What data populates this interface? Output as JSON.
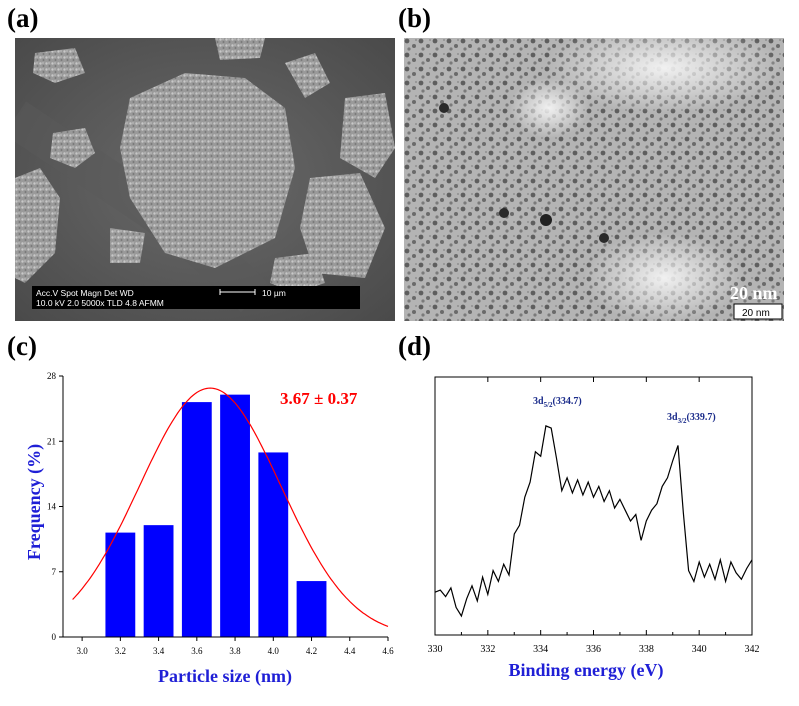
{
  "panel_labels": {
    "a": "(a)",
    "b": "(b)",
    "c": "(c)",
    "d": "(d)"
  },
  "sem": {
    "info_header": "Acc.V  Spot Magn    Det  WD",
    "info_values": "10.0 kV 2.0   5000x    TLD  4.8   AFMM",
    "scale_label": "10 µm"
  },
  "tem": {
    "scale_text_large": "20 nm",
    "scale_box_label": "20 nm"
  },
  "colors": {
    "bar": "#0000ff",
    "fit": "#ff0000",
    "axis_title_c": "#1f1fd6",
    "axis_title_d": "#1f1fd6",
    "peak_label": "#1a2b8a"
  },
  "chart_data": [
    {
      "type": "bar",
      "panel": "c",
      "categories": [
        3.2,
        3.4,
        3.6,
        3.8,
        4.0,
        4.2
      ],
      "values": [
        11.2,
        12.0,
        25.2,
        26.0,
        19.8,
        6.0
      ],
      "fit": {
        "type": "gaussian",
        "mean": 3.67,
        "sigma": 0.37,
        "peak": 26.7
      },
      "annotation": "3.67 ± 0.37",
      "xlabel": "Particle size (nm)",
      "ylabel": "Frequency (%)",
      "xlim": [
        2.9,
        4.6
      ],
      "ylim": [
        0,
        28
      ],
      "xticks": [
        "3.0",
        "3.2",
        "3.4",
        "3.6",
        "3.8",
        "4.0",
        "4.2",
        "4.4",
        "4.6"
      ],
      "yticks": [
        "0",
        "7",
        "14",
        "21",
        "28"
      ]
    },
    {
      "type": "line",
      "panel": "d",
      "x": [
        330.0,
        330.2,
        330.4,
        330.6,
        330.8,
        331.0,
        331.2,
        331.4,
        331.6,
        331.8,
        332.0,
        332.2,
        332.4,
        332.6,
        332.8,
        333.0,
        333.2,
        333.4,
        333.6,
        333.8,
        334.0,
        334.2,
        334.4,
        334.6,
        334.8,
        335.0,
        335.2,
        335.4,
        335.6,
        335.8,
        336.0,
        336.2,
        336.4,
        336.6,
        336.8,
        337.0,
        337.2,
        337.4,
        337.6,
        337.8,
        338.0,
        338.2,
        338.4,
        338.6,
        338.8,
        339.0,
        339.2,
        339.4,
        339.6,
        339.8,
        340.0,
        340.2,
        340.4,
        340.6,
        340.8,
        341.0,
        341.2,
        341.4,
        341.6,
        341.8,
        342.0
      ],
      "y": [
        0.11,
        0.12,
        0.09,
        0.13,
        0.04,
        0.0,
        0.08,
        0.14,
        0.07,
        0.18,
        0.1,
        0.21,
        0.16,
        0.24,
        0.19,
        0.38,
        0.42,
        0.55,
        0.62,
        0.76,
        0.74,
        0.88,
        0.87,
        0.73,
        0.58,
        0.64,
        0.57,
        0.63,
        0.56,
        0.62,
        0.55,
        0.6,
        0.53,
        0.58,
        0.5,
        0.54,
        0.49,
        0.44,
        0.47,
        0.35,
        0.44,
        0.49,
        0.52,
        0.6,
        0.64,
        0.72,
        0.79,
        0.48,
        0.21,
        0.16,
        0.25,
        0.18,
        0.24,
        0.17,
        0.26,
        0.16,
        0.25,
        0.2,
        0.17,
        0.22,
        0.26
      ],
      "xlabel": "Binding energy (eV)",
      "xlim": [
        330,
        342
      ],
      "xticks": [
        "330",
        "332",
        "334",
        "336",
        "338",
        "340",
        "342"
      ],
      "peaks": [
        {
          "main": "3d",
          "sub": "5/2",
          "text": "(334.7)",
          "x": 334.7
        },
        {
          "main": "3d",
          "sub": "3/2",
          "text": "(339.7)",
          "x": 339.7
        }
      ]
    }
  ]
}
